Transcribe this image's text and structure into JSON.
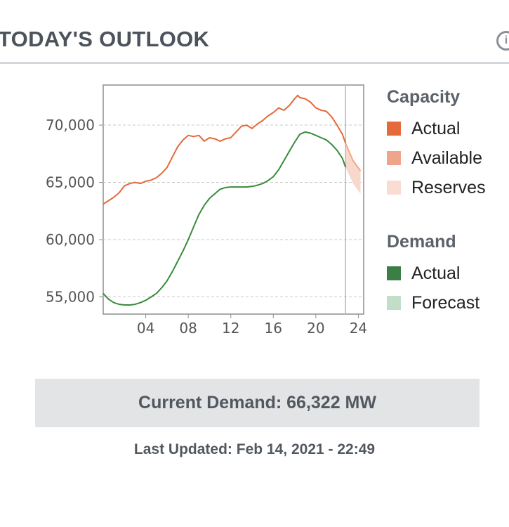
{
  "header": {
    "title": "TODAY'S OUTLOOK",
    "info_icon": "info-icon"
  },
  "chart_data": {
    "type": "line",
    "xlim": [
      0,
      24.5
    ],
    "ylim": [
      53500,
      73500
    ],
    "x_ticks": [
      "04",
      "08",
      "12",
      "16",
      "20",
      "24"
    ],
    "x_tick_values": [
      4,
      8,
      12,
      16,
      20,
      24
    ],
    "y_ticks": [
      "55,000",
      "60,000",
      "65,000",
      "70,000"
    ],
    "y_tick_values": [
      55000,
      60000,
      65000,
      70000
    ],
    "grid": "horizontal dashed",
    "current_time_marker": 22.8,
    "series": [
      {
        "name": "Capacity Actual",
        "color": "#e5693a",
        "x": [
          0,
          0.5,
          1,
          1.5,
          2,
          2.5,
          3,
          3.5,
          4,
          4.5,
          5,
          5.5,
          6,
          6.5,
          7,
          7.5,
          8,
          8.5,
          9,
          9.5,
          10,
          10.5,
          11,
          11.5,
          12,
          12.5,
          13,
          13.5,
          14,
          14.5,
          15,
          15.5,
          16,
          16.5,
          17,
          17.5,
          18,
          18.3,
          18.5,
          19,
          19.5,
          20,
          20.5,
          21,
          21.5,
          22,
          22.5,
          22.8
        ],
        "values": [
          63100,
          63400,
          63700,
          64100,
          64700,
          64900,
          65000,
          64900,
          65100,
          65200,
          65400,
          65800,
          66300,
          67200,
          68100,
          68700,
          69100,
          69000,
          69100,
          68600,
          68900,
          68800,
          68600,
          68800,
          68900,
          69400,
          69900,
          70000,
          69700,
          70100,
          70400,
          70800,
          71100,
          71500,
          71300,
          71700,
          72300,
          72600,
          72400,
          72300,
          72000,
          71500,
          71300,
          71200,
          70700,
          70000,
          69200,
          68400
        ]
      },
      {
        "name": "Demand Actual",
        "color": "#3a8a3c",
        "x": [
          0,
          0.5,
          1,
          1.5,
          2,
          2.5,
          3,
          3.5,
          4,
          4.5,
          5,
          5.5,
          6,
          6.5,
          7,
          7.5,
          8,
          8.5,
          9,
          9.5,
          10,
          10.5,
          11,
          11.5,
          12,
          12.5,
          13,
          13.5,
          14,
          14.5,
          15,
          15.5,
          16,
          16.5,
          17,
          17.5,
          18,
          18.5,
          19,
          19.5,
          20,
          20.5,
          21,
          21.5,
          22,
          22.5,
          22.8
        ],
        "values": [
          55300,
          54800,
          54500,
          54350,
          54300,
          54300,
          54350,
          54500,
          54700,
          55000,
          55300,
          55800,
          56400,
          57200,
          58100,
          59000,
          60000,
          61100,
          62200,
          63000,
          63600,
          64000,
          64400,
          64550,
          64600,
          64600,
          64600,
          64600,
          64650,
          64750,
          64900,
          65150,
          65500,
          66100,
          66900,
          67700,
          68500,
          69200,
          69400,
          69300,
          69100,
          68900,
          68700,
          68300,
          67800,
          67100,
          66322
        ]
      },
      {
        "name": "Capacity Available (forecast)",
        "color": "#f0a98c",
        "x": [
          22.8,
          23.5,
          24.2
        ],
        "values": [
          68400,
          66900,
          66000
        ]
      },
      {
        "name": "Capacity Reserves (band)",
        "color": "#f8d8cc",
        "x": [
          22.8,
          23.5,
          24.2
        ],
        "upper": [
          68400,
          67000,
          66100
        ],
        "lower": [
          66300,
          64900,
          64000
        ]
      }
    ]
  },
  "legend": {
    "capacity_title": "Capacity",
    "capacity_items": [
      {
        "label": "Actual",
        "color": "#e5693a"
      },
      {
        "label": "Available",
        "color": "#efa58a"
      },
      {
        "label": "Reserves",
        "color": "#f9ddd3"
      }
    ],
    "demand_title": "Demand",
    "demand_items": [
      {
        "label": "Actual",
        "color": "#3c7f46"
      },
      {
        "label": "Forecast",
        "color": "#c3dec8"
      }
    ]
  },
  "footer": {
    "current_demand": "Current Demand: 66,322 MW",
    "last_updated": "Last Updated: Feb 14, 2021 - 22:49"
  }
}
